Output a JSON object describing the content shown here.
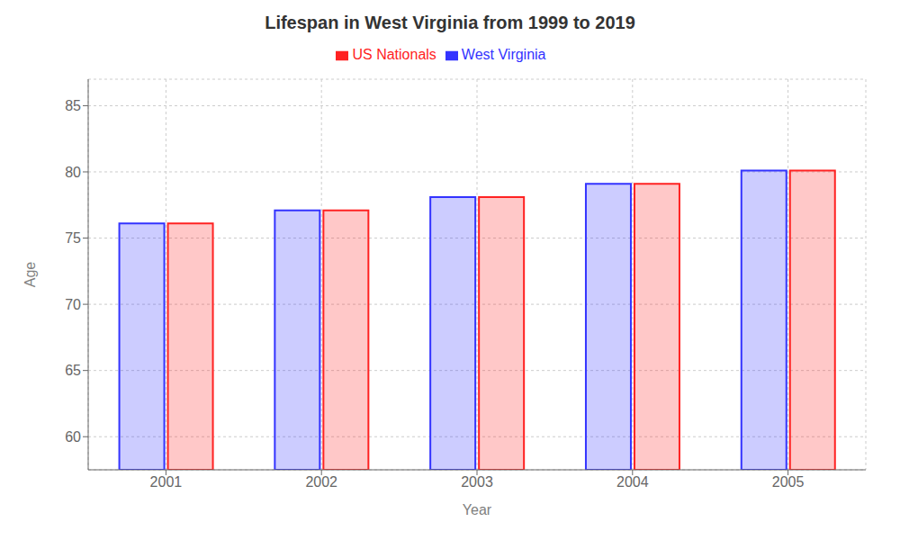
{
  "chart_data": {
    "type": "bar",
    "title": "Lifespan in West Virginia from 1999 to 2019",
    "xlabel": "Year",
    "ylabel": "Age",
    "categories": [
      "2001",
      "2002",
      "2003",
      "2004",
      "2005"
    ],
    "series": [
      {
        "name": "West Virginia",
        "color": "#3333ff",
        "values": [
          76.1,
          77.1,
          78.1,
          79.1,
          80.1
        ]
      },
      {
        "name": "US Nationals",
        "color": "#ff2222",
        "values": [
          76.1,
          77.1,
          78.1,
          79.1,
          80.1
        ]
      }
    ],
    "ylim": [
      57.5,
      87
    ],
    "yticks": [
      60,
      65,
      70,
      75,
      80,
      85
    ],
    "grid": true,
    "legend": "top"
  }
}
